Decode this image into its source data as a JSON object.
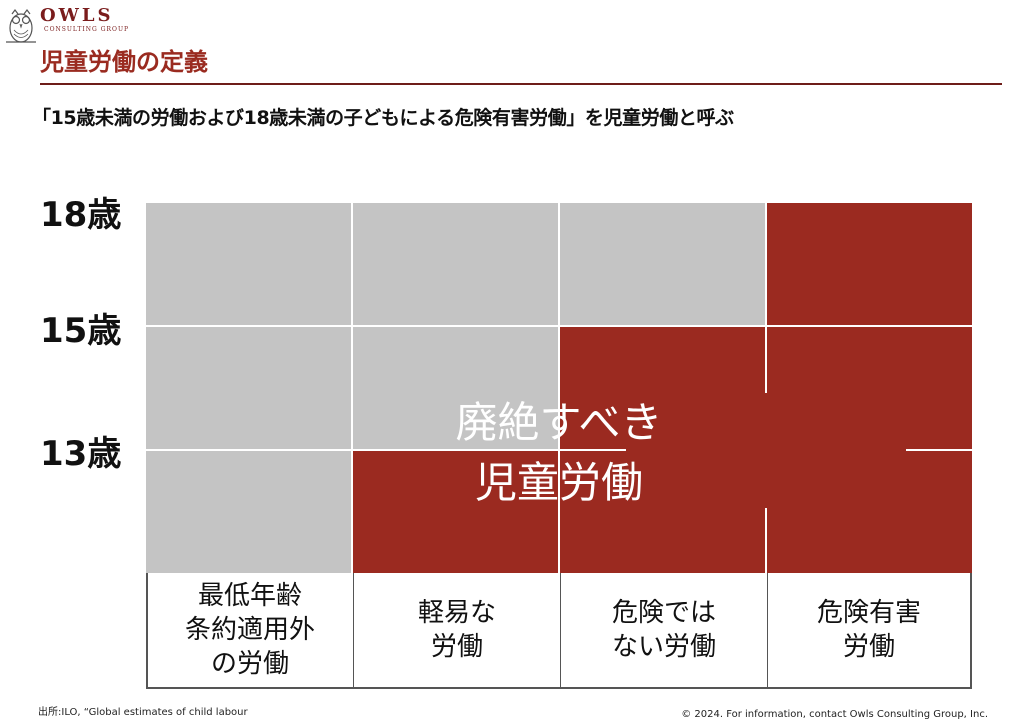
{
  "brand": {
    "name": "OWLS",
    "tagline": "CONSULTING GROUP"
  },
  "title": "児童労働の定義",
  "subtitle": "「15歳未満の労働および18歳未満の子どもによる危険有害労働」を児童労働と呼ぶ",
  "age_labels": [
    "18歳",
    "15歳",
    "13歳"
  ],
  "columns": [
    "最低年齢\n条約適用外\nの労働",
    "軽易な\n労働",
    "危険では\nない労働",
    "危険有害\n労働"
  ],
  "grid_status": [
    [
      "permitted",
      "permitted",
      "permitted",
      "child-labour"
    ],
    [
      "permitted",
      "permitted",
      "child-labour",
      "child-labour"
    ],
    [
      "permitted",
      "child-labour",
      "child-labour",
      "child-labour"
    ]
  ],
  "center_label": {
    "line1": "廃絶すべき",
    "line2": "児童労働"
  },
  "colors": {
    "child_labour": "#9b2a20",
    "permitted": "#c4c4c4",
    "title": "#9a2b20"
  },
  "footer": {
    "source": "出所:ILO, “Global estimates of child labour",
    "copyright": "© 2024. For information, contact Owls Consulting Group, Inc."
  }
}
